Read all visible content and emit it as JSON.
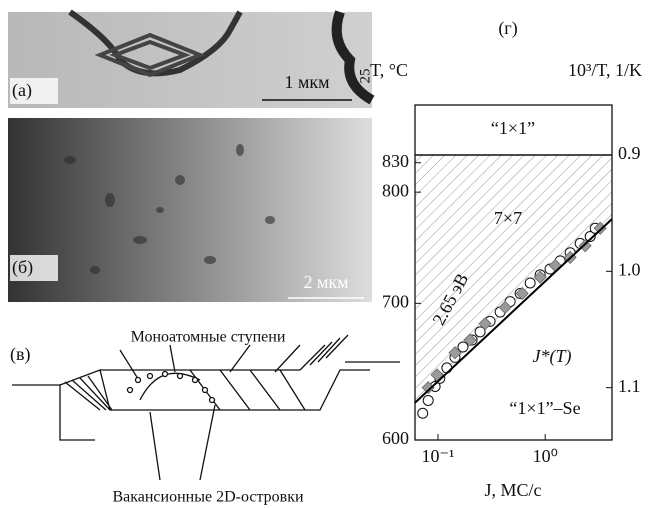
{
  "panels": {
    "a": {
      "label": "(а)",
      "scale_bar": "1 мкм",
      "height_bar": "25"
    },
    "b": {
      "label": "(б)",
      "scale_bar": "2 мкм"
    },
    "c": {
      "label": "(в)",
      "steps_label": "Моноатомные ступени",
      "islands_label": "Вакансионные 2D-островки"
    }
  },
  "chart_data": {
    "type": "scatter",
    "panel_label": "(г)",
    "xlabel": "J, МС/с",
    "ylabel": "T, °C",
    "y2label": "10³/T, 1/K",
    "xscale": "log",
    "xlim": [
      0.061,
      4.2
    ],
    "xticks": [
      {
        "value": 0.1,
        "label": "10⁻¹"
      },
      {
        "value": 1,
        "label": "10⁰"
      }
    ],
    "yscale": "inverse-kelvin",
    "ylim": [
      600,
      894
    ],
    "yticks": [
      600,
      700,
      800,
      830
    ],
    "y2lim": [
      1.145,
      0.857
    ],
    "y2ticks": [
      0.9,
      {
        "value": 1,
        "label": "1.0"
      },
      1.1
    ],
    "boundary": 0.9,
    "series": [
      {
        "marker": "circle",
        "color": "#ffffff",
        "axis": "y2",
        "x": [
          0.072,
          0.081,
          0.094,
          0.104,
          0.121,
          0.144,
          0.171,
          0.208,
          0.247,
          0.306,
          0.38,
          0.471,
          0.584,
          0.724,
          0.898,
          1.11,
          1.38,
          1.71,
          2.12,
          2.63,
          2.93
        ],
        "values": [
          1.122,
          1.111,
          1.099,
          1.092,
          1.083,
          1.074,
          1.065,
          1.059,
          1.052,
          1.043,
          1.035,
          1.026,
          1.019,
          1.01,
          1.003,
          0.998,
          0.991,
          0.984,
          0.976,
          0.97,
          0.963
        ]
      },
      {
        "marker": "diamond",
        "color": "#9a9a9a",
        "axis": "y2",
        "x": [
          0.081,
          0.098,
          0.144,
          0.199,
          0.275,
          0.423,
          0.61,
          0.898,
          1.24,
          1.71,
          2.36,
          3.26
        ],
        "values": [
          1.1,
          1.089,
          1.07,
          1.059,
          1.045,
          1.031,
          1.019,
          1.005,
          0.995,
          0.988,
          0.978,
          0.963
        ]
      },
      {
        "marker": "line",
        "color": "#000000",
        "axis": "y2",
        "x": [
          0.061,
          4.2
        ],
        "values": [
          1.113,
          0.955
        ]
      }
    ],
    "annotations": [
      "“1×1”",
      "7×7",
      "2.65 эВ",
      "J*(T)",
      "“1×1”–Se"
    ]
  }
}
